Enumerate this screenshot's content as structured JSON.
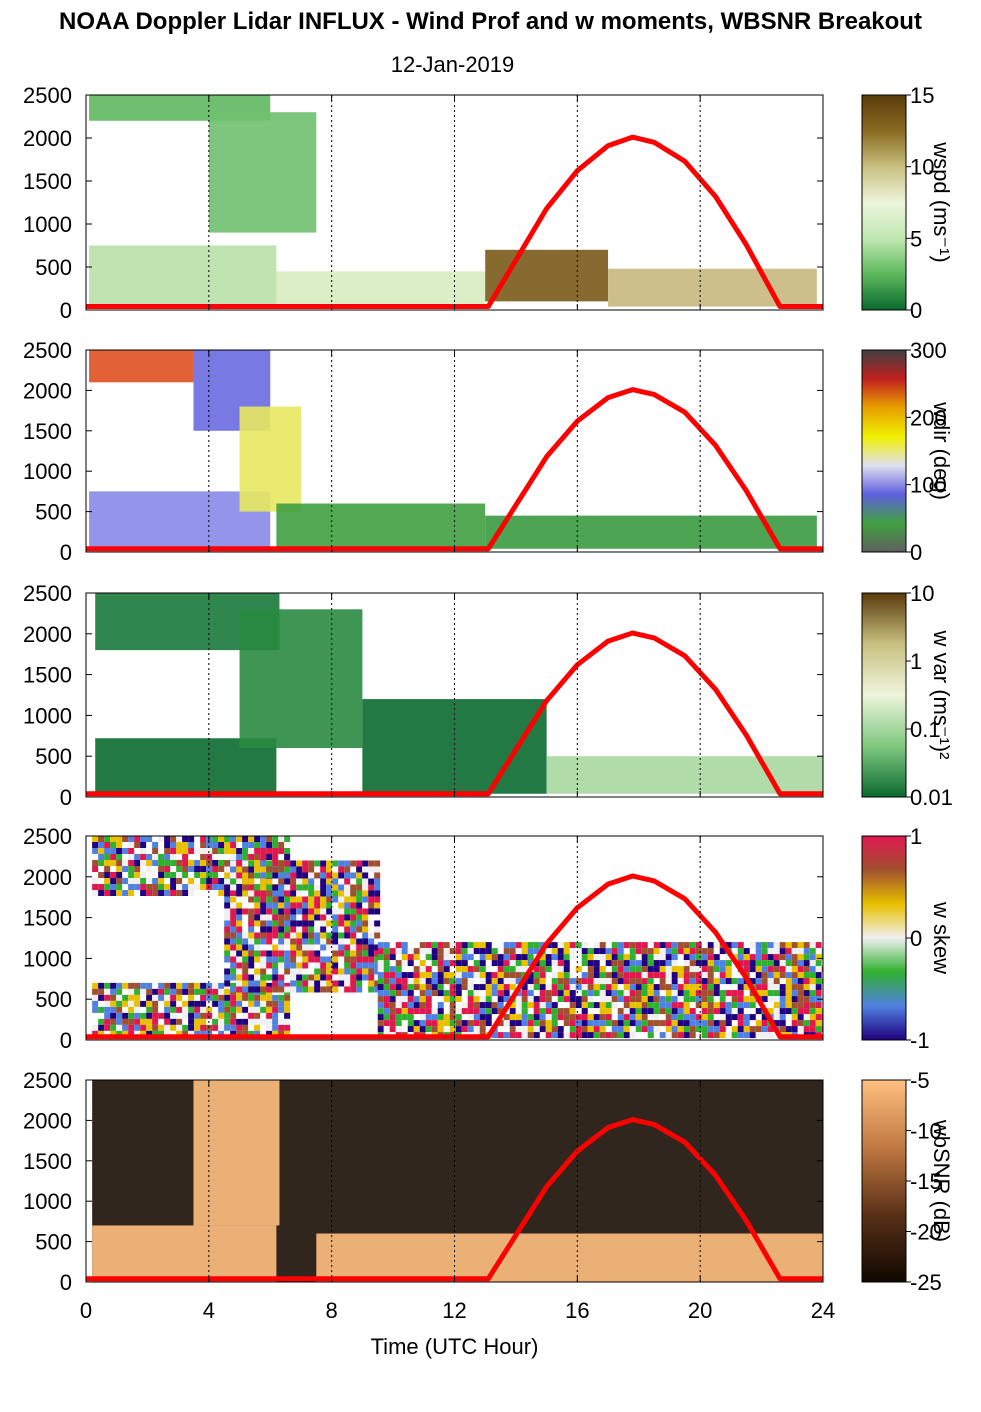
{
  "title": "NOAA Doppler Lidar INFLUX - Wind Prof and w moments, WBSNR Breakout",
  "subtitle": "12-Jan-2019",
  "chart_data": {
    "type": "heatmap",
    "xlabel": "Time (UTC Hour)",
    "xlim": [
      0,
      24
    ],
    "x_ticks": [
      "0",
      "4",
      "8",
      "12",
      "16",
      "20",
      "24"
    ],
    "ylim": [
      0,
      2500
    ],
    "y_ticks": [
      "0",
      "500",
      "1000",
      "1500",
      "2000",
      "2500"
    ],
    "grid": "dotted vertical lines every 4 h",
    "overlay": {
      "color": "#ff0000",
      "description": "solar elevation curve",
      "x": [
        0,
        13.1,
        14,
        15,
        16,
        17,
        17.8,
        18.5,
        19.5,
        20.5,
        21.5,
        22.6,
        24
      ],
      "y": [
        40,
        40,
        580,
        1180,
        1620,
        1910,
        2010,
        1950,
        1730,
        1320,
        760,
        40,
        40
      ]
    },
    "panels": [
      {
        "id": "wspd",
        "colorbar_label": "wspd (ms⁻¹)",
        "colorbar_ticks": [
          "15",
          "10",
          "5",
          "0"
        ],
        "colorscale": [
          "#5a3a0a",
          "#8a6a20",
          "#c8c080",
          "#eef5dc",
          "#c0e8b0",
          "#5cb85c",
          "#0a6a30"
        ],
        "features": [
          {
            "x0": 0.1,
            "x1": 6.2,
            "y0": 40,
            "y1": 750,
            "v": "#b8e0a8"
          },
          {
            "x0": 0.1,
            "x1": 6.0,
            "y0": 2200,
            "y1": 2500,
            "v": "#60b860"
          },
          {
            "x0": 4.0,
            "x1": 7.5,
            "y0": 900,
            "y1": 2300,
            "v": "#70c070"
          },
          {
            "x0": 6.2,
            "x1": 13.0,
            "y0": 40,
            "y1": 450,
            "v": "#d8ecc0"
          },
          {
            "x0": 13.0,
            "x1": 17.0,
            "y0": 100,
            "y1": 700,
            "v": "#7a5a18"
          },
          {
            "x0": 17.0,
            "x1": 23.8,
            "y0": 40,
            "y1": 480,
            "v": "#c8b880"
          }
        ]
      },
      {
        "id": "wdir",
        "colorbar_label": "wdir (deg)",
        "colorbar_ticks": [
          "300",
          "200",
          "100",
          "0"
        ],
        "colorscale": [
          "#404040",
          "#c02020",
          "#e8a000",
          "#f0f000",
          "#e0e0f0",
          "#6060e0",
          "#40a040",
          "#606060"
        ],
        "features": [
          {
            "x0": 0.1,
            "x1": 6.0,
            "y0": 40,
            "y1": 750,
            "v": "#8888e8"
          },
          {
            "x0": 0.1,
            "x1": 3.5,
            "y0": 2100,
            "y1": 2500,
            "v": "#e05020"
          },
          {
            "x0": 3.5,
            "x1": 6.0,
            "y0": 1500,
            "y1": 2500,
            "v": "#6a6ae0"
          },
          {
            "x0": 5.0,
            "x1": 7.0,
            "y0": 500,
            "y1": 1800,
            "v": "#e8e860"
          },
          {
            "x0": 6.2,
            "x1": 13.0,
            "y0": 40,
            "y1": 600,
            "v": "#40a040"
          },
          {
            "x0": 13.0,
            "x1": 23.8,
            "y0": 40,
            "y1": 450,
            "v": "#3a9a40"
          }
        ]
      },
      {
        "id": "wvar",
        "colorbar_label": "w var (ms⁻¹)²",
        "colorbar_ticks": [
          "10",
          "1",
          "0.1",
          "0.01"
        ],
        "colorscale": [
          "#5a3a0a",
          "#c8c080",
          "#eef5dc",
          "#80c880",
          "#0a6a30"
        ],
        "features": [
          {
            "x0": 0.3,
            "x1": 6.2,
            "y0": 40,
            "y1": 720,
            "v": "#0a6a30"
          },
          {
            "x0": 0.3,
            "x1": 6.3,
            "y0": 1800,
            "y1": 2500,
            "v": "#1a7a3a"
          },
          {
            "x0": 5.0,
            "x1": 9.0,
            "y0": 600,
            "y1": 2300,
            "v": "#2a8a40"
          },
          {
            "x0": 9.0,
            "x1": 15.0,
            "y0": 40,
            "y1": 1200,
            "v": "#0a6a30"
          },
          {
            "x0": 15.0,
            "x1": 24,
            "y0": 40,
            "y1": 500,
            "v": "#a8d8a0"
          }
        ]
      },
      {
        "id": "wskew",
        "colorbar_label": "w skew",
        "colorbar_ticks": [
          "1",
          "0",
          "-1"
        ],
        "colorscale": [
          "#e01850",
          "#a05030",
          "#e8c000",
          "#f0f0f0",
          "#30b030",
          "#5080e0",
          "#200080"
        ],
        "features": [
          {
            "x0": 0.2,
            "x1": 6.5,
            "y0": 40,
            "y1": 700,
            "v": "mixed"
          },
          {
            "x0": 0.2,
            "x1": 6.5,
            "y0": 1800,
            "y1": 2500,
            "v": "mixed"
          },
          {
            "x0": 4.5,
            "x1": 9.5,
            "y0": 600,
            "y1": 2200,
            "v": "mixed"
          },
          {
            "x0": 9.5,
            "x1": 24,
            "y0": 40,
            "y1": 1200,
            "v": "mixed"
          }
        ]
      },
      {
        "id": "wbsnr",
        "colorbar_label": "wbSNR (dB)",
        "colorbar_ticks": [
          "-5",
          "-10",
          "-15",
          "-20",
          "-25"
        ],
        "colorscale": [
          "#ffc080",
          "#c07840",
          "#5a3018",
          "#100800"
        ],
        "features": [
          {
            "x0": 0.2,
            "x1": 24,
            "y0": 0,
            "y1": 2500,
            "v": "#1a0e06"
          },
          {
            "x0": 0.2,
            "x1": 6.2,
            "y0": 0,
            "y1": 700,
            "v": "#ffc080"
          },
          {
            "x0": 3.5,
            "x1": 6.3,
            "y0": 700,
            "y1": 2500,
            "v": "#ffc080"
          },
          {
            "x0": 7.5,
            "x1": 24,
            "y0": 0,
            "y1": 600,
            "v": "#ffc080"
          }
        ]
      }
    ]
  }
}
